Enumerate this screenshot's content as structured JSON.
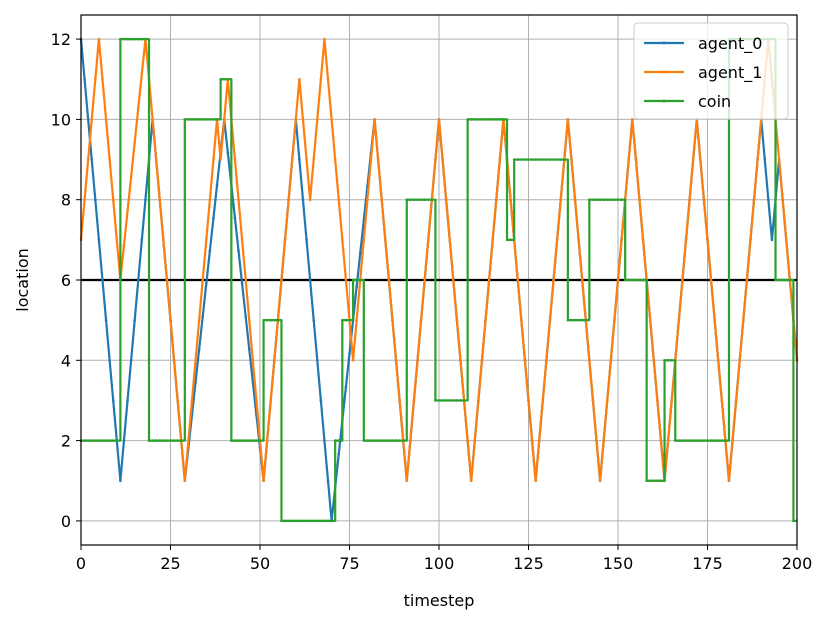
{
  "chart_data": {
    "type": "line",
    "xlabel": "timestep",
    "ylabel": "location",
    "xlim": [
      0,
      200
    ],
    "ylim": [
      -0.6,
      12.6
    ],
    "x_ticks": [
      0,
      25,
      50,
      75,
      100,
      125,
      150,
      175,
      200
    ],
    "y_ticks": [
      0,
      2,
      4,
      6,
      8,
      10,
      12
    ],
    "grid": true,
    "legend_position": "top-right",
    "reference_line": {
      "y": 6,
      "color": "#000000"
    },
    "series": [
      {
        "name": "agent_0",
        "color": "#1f77b4",
        "step": false,
        "points": [
          [
            0,
            12
          ],
          [
            11,
            1
          ],
          [
            20,
            10
          ],
          [
            29,
            1
          ],
          [
            40,
            10
          ],
          [
            51,
            1
          ],
          [
            60,
            10
          ],
          [
            70,
            0
          ],
          [
            82,
            10
          ],
          [
            91,
            1
          ],
          [
            100,
            10
          ],
          [
            109,
            1
          ],
          [
            118,
            10
          ],
          [
            127,
            1
          ],
          [
            136,
            10
          ],
          [
            145,
            1
          ],
          [
            154,
            10
          ],
          [
            163,
            1
          ],
          [
            172,
            10
          ],
          [
            181,
            1
          ],
          [
            190,
            10
          ],
          [
            193,
            7
          ],
          [
            195,
            9
          ],
          [
            200,
            4
          ]
        ]
      },
      {
        "name": "agent_1",
        "color": "#ff7f0e",
        "step": false,
        "points": [
          [
            0,
            7
          ],
          [
            5,
            12
          ],
          [
            11,
            6
          ],
          [
            18,
            12
          ],
          [
            29,
            1
          ],
          [
            38,
            10
          ],
          [
            39,
            9
          ],
          [
            41,
            11
          ],
          [
            51,
            1
          ],
          [
            61,
            11
          ],
          [
            64,
            8
          ],
          [
            68,
            12
          ],
          [
            76,
            4
          ],
          [
            82,
            10
          ],
          [
            91,
            1
          ],
          [
            100,
            10
          ],
          [
            109,
            1
          ],
          [
            118,
            10
          ],
          [
            127,
            1
          ],
          [
            136,
            10
          ],
          [
            145,
            1
          ],
          [
            154,
            10
          ],
          [
            163,
            1
          ],
          [
            172,
            10
          ],
          [
            181,
            1
          ],
          [
            190,
            10
          ],
          [
            192,
            12
          ],
          [
            200,
            4
          ]
        ]
      },
      {
        "name": "coin",
        "color": "#2ca02c",
        "step": true,
        "points": [
          [
            0,
            2
          ],
          [
            11,
            12
          ],
          [
            19,
            2
          ],
          [
            29,
            10
          ],
          [
            39,
            11
          ],
          [
            42,
            2
          ],
          [
            51,
            5
          ],
          [
            56,
            0
          ],
          [
            71,
            2
          ],
          [
            73,
            5
          ],
          [
            76,
            6
          ],
          [
            79,
            2
          ],
          [
            91,
            8
          ],
          [
            99,
            3
          ],
          [
            108,
            10
          ],
          [
            119,
            7
          ],
          [
            121,
            9
          ],
          [
            136,
            5
          ],
          [
            142,
            8
          ],
          [
            152,
            6
          ],
          [
            158,
            1
          ],
          [
            163,
            4
          ],
          [
            166,
            2
          ],
          [
            181,
            12
          ],
          [
            194,
            6
          ],
          [
            199,
            0
          ],
          [
            200,
            0
          ]
        ]
      }
    ]
  }
}
